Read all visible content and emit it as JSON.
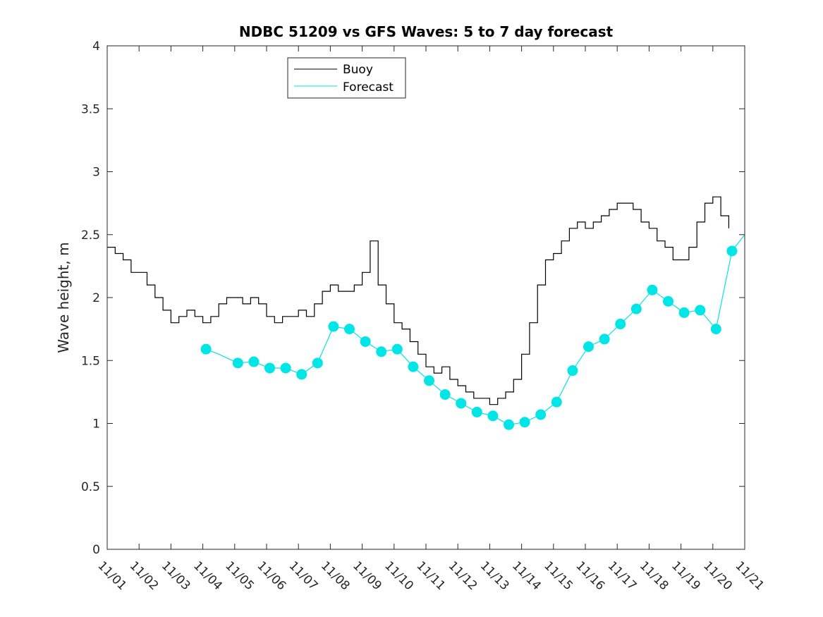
{
  "chart_data": {
    "type": "line",
    "title": "NDBC 51209 vs GFS Waves: 5 to 7 day forecast",
    "xlabel": "",
    "ylabel": "Wave height, m",
    "ylim": [
      0,
      4
    ],
    "yticks": [
      0,
      0.5,
      1,
      1.5,
      2,
      2.5,
      3,
      3.5,
      4
    ],
    "ytick_labels": [
      "0",
      "0.5",
      "1",
      "1.5",
      "2",
      "2.5",
      "3",
      "3.5",
      "4"
    ],
    "xlim_days": [
      0,
      20
    ],
    "xtick_labels": [
      "11/01",
      "11/02",
      "11/03",
      "11/04",
      "11/05",
      "11/06",
      "11/07",
      "11/08",
      "11/09",
      "11/10",
      "11/11",
      "11/12",
      "11/13",
      "11/14",
      "11/15",
      "11/16",
      "11/17",
      "11/18",
      "11/19",
      "11/20",
      "11/21"
    ],
    "legend": {
      "position": "top-center",
      "entries": [
        {
          "label": "Buoy",
          "color": "#000000"
        },
        {
          "label": "Forecast",
          "color": "#00e5e5"
        }
      ]
    },
    "series": [
      {
        "name": "Buoy",
        "color": "#000000",
        "x": [
          0.0,
          0.25,
          0.5,
          0.75,
          1.0,
          1.25,
          1.5,
          1.75,
          2.0,
          2.25,
          2.5,
          2.75,
          3.0,
          3.25,
          3.5,
          3.75,
          4.0,
          4.25,
          4.5,
          4.75,
          5.0,
          5.25,
          5.5,
          5.75,
          6.0,
          6.25,
          6.5,
          6.75,
          7.0,
          7.25,
          7.5,
          7.75,
          8.0,
          8.25,
          8.5,
          8.75,
          9.0,
          9.25,
          9.5,
          9.75,
          10.0,
          10.25,
          10.5,
          10.75,
          11.0,
          11.25,
          11.5,
          11.75,
          12.0,
          12.25,
          12.5,
          12.75,
          13.0,
          13.25,
          13.5,
          13.75,
          14.0,
          14.25,
          14.5,
          14.75,
          15.0,
          15.25,
          15.5,
          15.75,
          16.0,
          16.25,
          16.5,
          16.75,
          17.0,
          17.25,
          17.5,
          17.75,
          18.0,
          18.25,
          18.5,
          18.75,
          19.0,
          19.25,
          19.5
        ],
        "values": [
          2.4,
          2.35,
          2.3,
          2.2,
          2.2,
          2.1,
          2.0,
          1.9,
          1.8,
          1.85,
          1.9,
          1.85,
          1.8,
          1.85,
          1.95,
          2.0,
          2.0,
          1.95,
          2.0,
          1.95,
          1.85,
          1.8,
          1.85,
          1.85,
          1.9,
          1.85,
          1.95,
          2.05,
          2.1,
          2.05,
          2.05,
          2.1,
          2.2,
          2.45,
          2.1,
          1.95,
          1.8,
          1.75,
          1.65,
          1.55,
          1.45,
          1.4,
          1.45,
          1.35,
          1.3,
          1.25,
          1.2,
          1.2,
          1.15,
          1.2,
          1.25,
          1.35,
          1.55,
          1.8,
          2.1,
          2.3,
          2.35,
          2.45,
          2.55,
          2.6,
          2.55,
          2.6,
          2.65,
          2.7,
          2.75,
          2.75,
          2.7,
          2.6,
          2.55,
          2.45,
          2.4,
          2.3,
          2.3,
          2.4,
          2.6,
          2.75,
          2.8,
          2.65,
          2.55
        ]
      },
      {
        "name": "Forecast",
        "color": "#00e5e5",
        "x": [
          3.1,
          3.5,
          4.1,
          4.6,
          5.1,
          5.6,
          6.1,
          6.6,
          7.1,
          7.6,
          8.1,
          8.6,
          9.1,
          9.6,
          10.1,
          10.6,
          11.1,
          11.6,
          12.1,
          12.6,
          13.1,
          13.6,
          14.1,
          14.6,
          15.1,
          15.6,
          16.1,
          16.6,
          17.1,
          17.6,
          18.1,
          18.6,
          19.1,
          19.6,
          20.0
        ],
        "values": [
          1.59,
          1.55,
          1.48,
          1.49,
          1.44,
          1.44,
          1.39,
          1.48,
          1.77,
          1.75,
          1.65,
          1.57,
          1.59,
          1.45,
          1.34,
          1.23,
          1.16,
          1.09,
          1.06,
          0.99,
          1.01,
          1.07,
          1.17,
          1.42,
          1.61,
          1.67,
          1.79,
          1.91,
          2.06,
          1.97,
          1.88,
          1.9,
          1.75,
          2.37,
          2.5
        ]
      }
    ],
    "forecast_markers": {
      "x": [
        3.1,
        4.1,
        4.6,
        5.1,
        5.6,
        6.1,
        6.6,
        7.1,
        7.6,
        8.1,
        8.6,
        9.1,
        9.6,
        10.1,
        10.6,
        11.1,
        11.6,
        12.1,
        12.6,
        13.1,
        13.6,
        14.1,
        14.6,
        15.1,
        15.6,
        16.1,
        16.6,
        17.1,
        17.6,
        18.1,
        18.6,
        19.1,
        19.6
      ],
      "values": [
        1.59,
        1.48,
        1.49,
        1.44,
        1.44,
        1.39,
        1.48,
        1.77,
        1.75,
        1.65,
        1.57,
        1.59,
        1.45,
        1.34,
        1.23,
        1.16,
        1.09,
        1.06,
        0.99,
        1.01,
        1.07,
        1.17,
        1.42,
        1.61,
        1.67,
        1.79,
        1.91,
        2.06,
        1.97,
        1.88,
        1.9,
        1.75,
        2.37
      ]
    }
  }
}
